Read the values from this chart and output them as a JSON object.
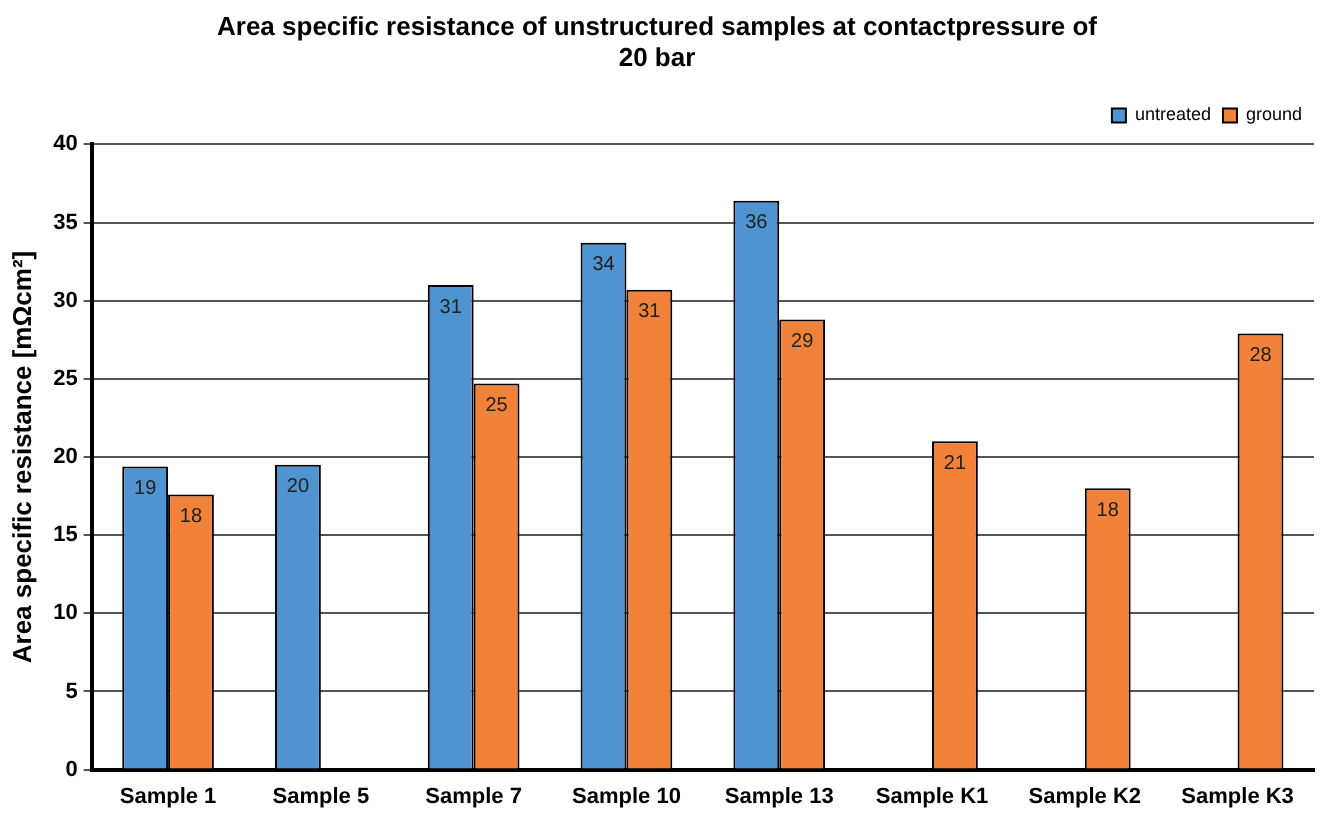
{
  "chart_data": {
    "type": "bar",
    "title": "Area specific resistance of unstructured samples at contactpressure of 20 bar",
    "ylabel": "Area specific resistance [mΩcm²]",
    "categories": [
      "Sample 1",
      "Sample 5",
      "Sample 7",
      "Sample 10",
      "Sample 13",
      "Sample K1",
      "Sample K2",
      "Sample K3"
    ],
    "series": [
      {
        "name": "untreated",
        "color": "#4f94d0",
        "values": [
          19.4,
          19.5,
          31.0,
          33.7,
          36.4,
          null,
          null,
          null
        ],
        "value_labels": [
          "19",
          "20",
          "31",
          "34",
          "36",
          null,
          null,
          null
        ]
      },
      {
        "name": "ground",
        "color": "#f2813a",
        "values": [
          17.6,
          null,
          24.7,
          30.7,
          28.8,
          21.0,
          18.0,
          27.9
        ],
        "value_labels": [
          "18",
          null,
          "25",
          "31",
          "29",
          "21",
          "18",
          "28"
        ]
      }
    ],
    "ylim": [
      0,
      40
    ],
    "yticks": [
      0,
      5,
      10,
      15,
      20,
      25,
      30,
      35,
      40
    ],
    "grid": "y",
    "legend": "top right"
  }
}
